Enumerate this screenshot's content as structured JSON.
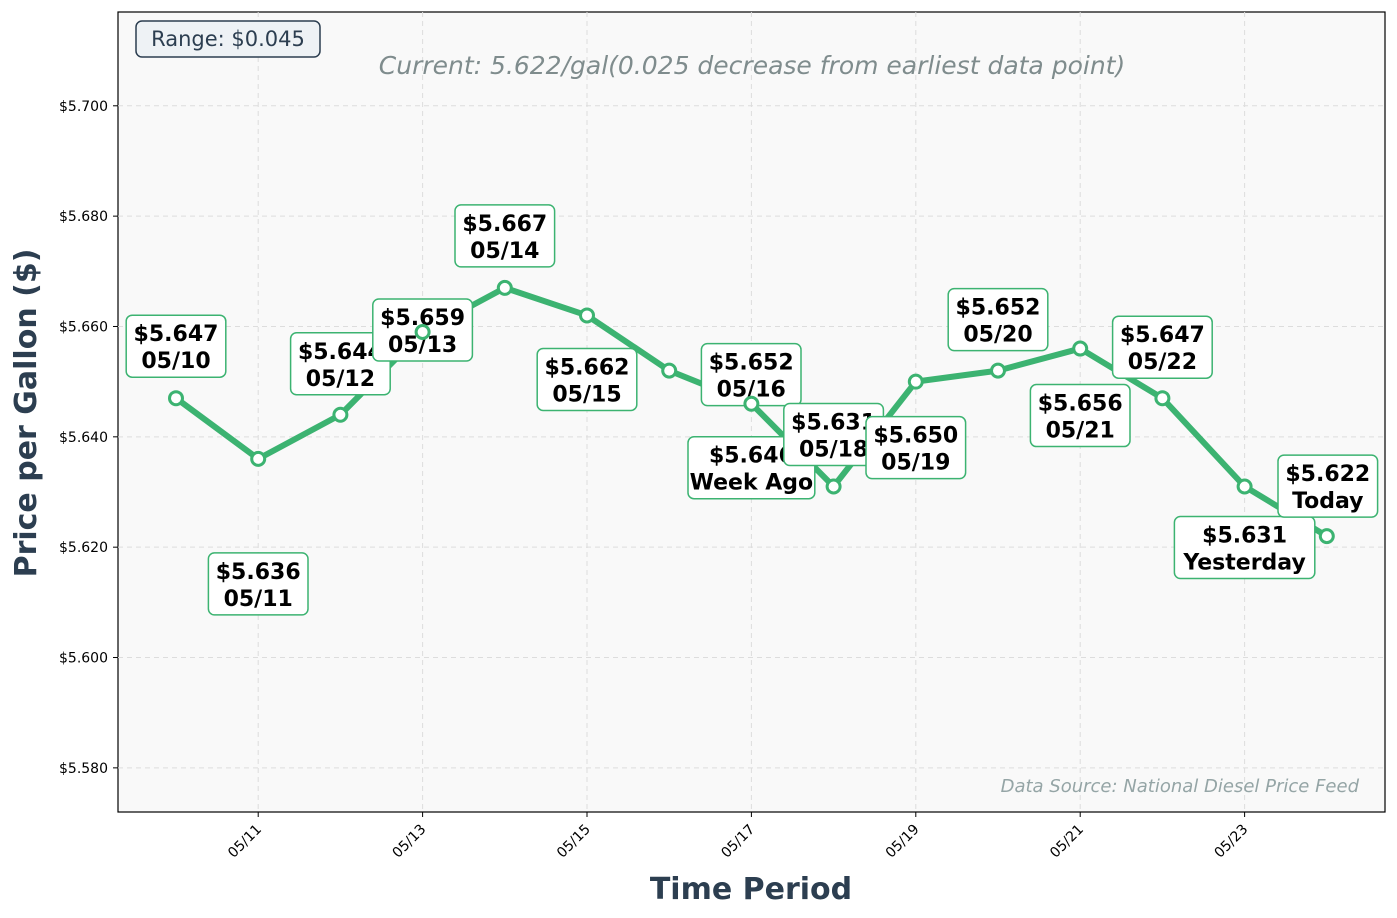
{
  "chart_data": {
    "type": "line",
    "title": "",
    "subtitle": "Current: 5.622/gal(0.025 decrease from earliest data point)",
    "xlabel": "Time Period",
    "ylabel": "Price per Gallon ($)",
    "ylim": [
      5.572,
      5.717
    ],
    "yticks": [
      5.58,
      5.6,
      5.62,
      5.64,
      5.66,
      5.68,
      5.7
    ],
    "ytick_labels": [
      "$5.580",
      "$5.600",
      "$5.620",
      "$5.640",
      "$5.660",
      "$5.680",
      "$5.700"
    ],
    "xticks": [
      "05/11",
      "05/13",
      "05/15",
      "05/17",
      "05/19",
      "05/21",
      "05/23"
    ],
    "grid": true,
    "line_color": "#3cb371",
    "categories": [
      "05/10",
      "05/11",
      "05/12",
      "05/13",
      "05/14",
      "05/15",
      "05/16",
      "05/17",
      "05/18",
      "05/19",
      "05/20",
      "05/21",
      "05/22",
      "05/23",
      "05/24"
    ],
    "values": [
      5.647,
      5.636,
      5.644,
      5.659,
      5.667,
      5.662,
      5.652,
      5.646,
      5.631,
      5.65,
      5.652,
      5.656,
      5.647,
      5.631,
      5.622
    ],
    "annotations": [
      {
        "price": "$5.647",
        "label": "05/10"
      },
      {
        "price": "$5.636",
        "label": "05/11"
      },
      {
        "price": "$5.644",
        "label": "05/12"
      },
      {
        "price": "$5.659",
        "label": "05/13"
      },
      {
        "price": "$5.667",
        "label": "05/14"
      },
      {
        "price": "$5.662",
        "label": "05/15"
      },
      {
        "price": "$5.652",
        "label": "05/16"
      },
      {
        "price": "$5.646",
        "label": "Week Ago"
      },
      {
        "price": "$5.631",
        "label": "05/18"
      },
      {
        "price": "$5.650",
        "label": "05/19"
      },
      {
        "price": "$5.652",
        "label": "05/20"
      },
      {
        "price": "$5.656",
        "label": "05/21"
      },
      {
        "price": "$5.647",
        "label": "05/22"
      },
      {
        "price": "$5.631",
        "label": "Yesterday"
      },
      {
        "price": "$5.622",
        "label": "Today"
      }
    ],
    "range_label": "Range: $0.045",
    "source_note": "Data Source: National Diesel Price Feed"
  }
}
